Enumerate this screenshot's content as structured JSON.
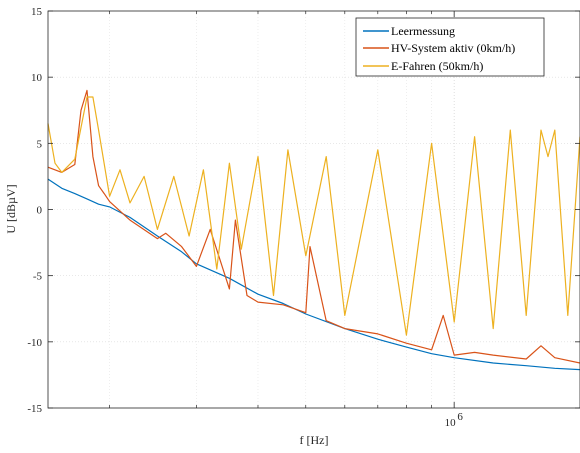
{
  "chart_data": {
    "type": "line",
    "xscale": "log",
    "xlim": [
      150000,
      1800000
    ],
    "ylim": [
      -15,
      15
    ],
    "xlabel": "f [Hz]",
    "ylabel": "U [dBµV]",
    "yticks": [
      15,
      10,
      5,
      0,
      -5,
      -10,
      -15
    ],
    "yticklabels": [
      "15",
      "10",
      "5",
      "0",
      "-5",
      "-10",
      "-15"
    ],
    "xticks_major": [
      1000000
    ],
    "xtick_major_label": {
      "base": "10",
      "exp": "6"
    },
    "xticks_minor": [
      200000,
      300000,
      400000,
      500000,
      600000,
      700000,
      800000,
      900000
    ],
    "grid": true,
    "legend_position": "top-right",
    "series": [
      {
        "name": "Leermessung",
        "color": "#0072BD",
        "x": [
          150000,
          160000,
          170000,
          180000,
          190000,
          200000,
          220000,
          250000,
          280000,
          300000,
          350000,
          400000,
          450000,
          500000,
          600000,
          700000,
          800000,
          900000,
          1000000,
          1200000,
          1400000,
          1600000,
          1800000
        ],
        "y": [
          2.3,
          1.6,
          1.2,
          0.8,
          0.4,
          0.2,
          -0.6,
          -2.0,
          -3.2,
          -4.1,
          -5.2,
          -6.4,
          -7.1,
          -7.9,
          -9.0,
          -9.8,
          -10.4,
          -10.9,
          -11.2,
          -11.6,
          -11.8,
          -12.0,
          -12.1
        ]
      },
      {
        "name": "HV-System aktiv (0km/h)",
        "color": "#D95319",
        "x": [
          150000,
          160000,
          170000,
          175000,
          180000,
          185000,
          190000,
          195000,
          200000,
          220000,
          250000,
          260000,
          280000,
          300000,
          320000,
          350000,
          360000,
          380000,
          400000,
          450000,
          500000,
          510000,
          550000,
          600000,
          700000,
          800000,
          900000,
          950000,
          1000000,
          1100000,
          1200000,
          1400000,
          1500000,
          1600000,
          1800000
        ],
        "y": [
          3.2,
          2.8,
          3.4,
          7.5,
          9.0,
          4.0,
          1.8,
          1.2,
          0.6,
          -0.8,
          -2.2,
          -1.8,
          -2.8,
          -4.3,
          -1.5,
          -6.0,
          -0.8,
          -6.5,
          -7.0,
          -7.2,
          -7.8,
          -2.8,
          -8.4,
          -9.0,
          -9.4,
          -10.1,
          -10.6,
          -8.0,
          -11.0,
          -10.8,
          -11.0,
          -11.3,
          -10.3,
          -11.2,
          -11.6
        ]
      },
      {
        "name": "E-Fahren (50km/h)",
        "color": "#EDB120",
        "x": [
          150000,
          155000,
          160000,
          170000,
          180000,
          185000,
          190000,
          200000,
          210000,
          220000,
          235000,
          250000,
          270000,
          290000,
          310000,
          330000,
          350000,
          370000,
          400000,
          430000,
          460000,
          500000,
          550000,
          600000,
          700000,
          800000,
          900000,
          1000000,
          1100000,
          1200000,
          1300000,
          1400000,
          1500000,
          1550000,
          1600000,
          1700000,
          1800000
        ],
        "y": [
          6.5,
          3.5,
          2.8,
          3.8,
          8.5,
          8.5,
          6.0,
          1.0,
          3.0,
          0.5,
          2.5,
          -1.5,
          2.5,
          -2.0,
          3.0,
          -4.5,
          3.5,
          -3.0,
          4.0,
          -6.5,
          4.5,
          -3.5,
          4.0,
          -8.0,
          4.5,
          -9.5,
          5.0,
          -8.5,
          5.5,
          -9.0,
          6.0,
          -8.0,
          6.0,
          4.0,
          6.0,
          -8.0,
          5.5
        ]
      }
    ]
  }
}
